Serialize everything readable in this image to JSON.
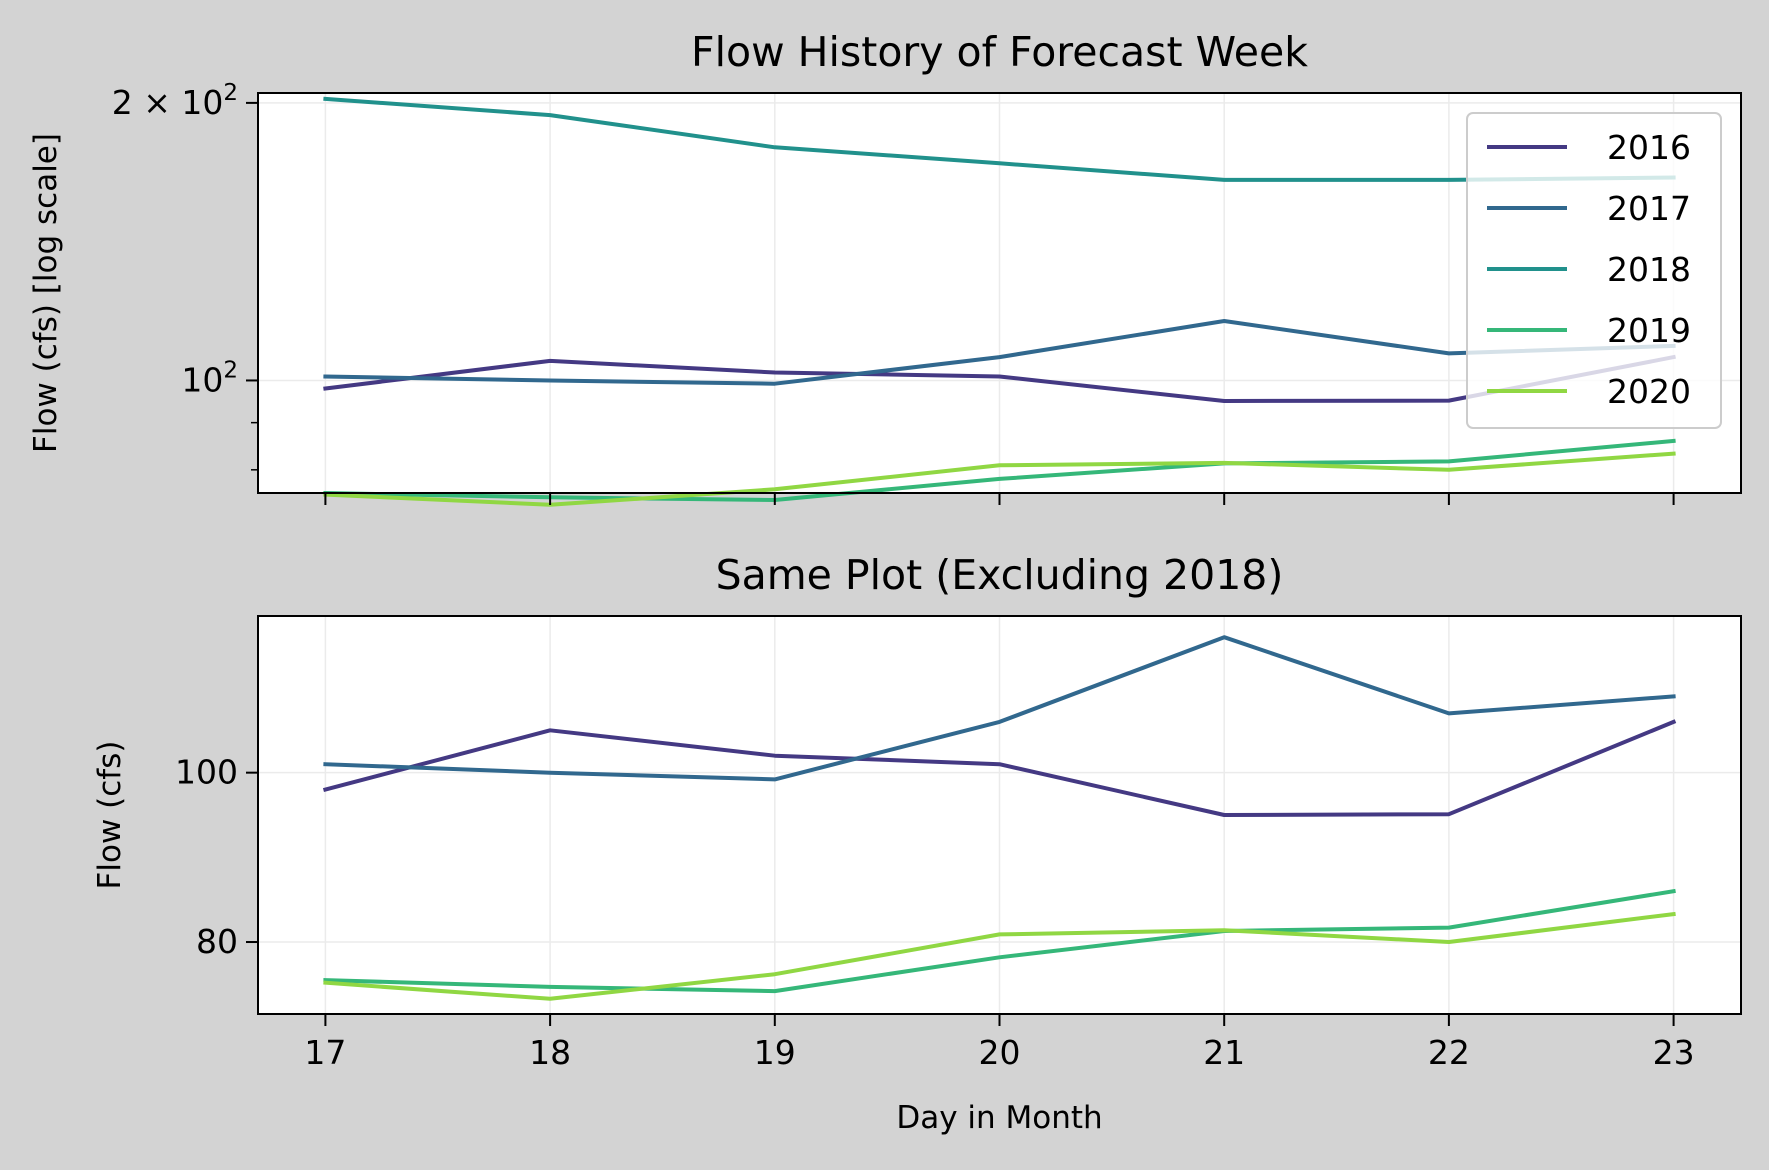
{
  "chart_data": [
    {
      "type": "line",
      "title": "Flow History of Forecast Week",
      "xlabel": "",
      "ylabel": "Flow (cfs) [log scale]",
      "yscale": "log",
      "ylim": [
        75.5,
        205
      ],
      "xlim": [
        16.7,
        23.3
      ],
      "x": [
        17,
        18,
        19,
        20,
        21,
        22,
        23
      ],
      "xticklabels": [],
      "yticks": [
        {
          "value": 100,
          "base": "10",
          "exp": "2"
        },
        {
          "value": 200,
          "mant": "2 × ",
          "base": "10",
          "exp": "2"
        }
      ],
      "minor_yticks": [
        80,
        90
      ],
      "grid": true,
      "legend": {
        "position": "top-right",
        "entries": [
          "2016",
          "2017",
          "2018",
          "2019",
          "2020"
        ]
      },
      "series": [
        {
          "name": "2016",
          "color": "#443983",
          "values": [
            98,
            105,
            102,
            101,
            95,
            95.1,
            106
          ]
        },
        {
          "name": "2017",
          "color": "#31688e",
          "values": [
            101,
            100,
            99.2,
            106,
            116,
            107,
            109
          ]
        },
        {
          "name": "2018",
          "color": "#21918c",
          "values": [
            202,
            194,
            179,
            172,
            165,
            165,
            166
          ]
        },
        {
          "name": "2019",
          "color": "#35b779",
          "values": [
            75.5,
            74.7,
            74.2,
            78.2,
            81.3,
            81.7,
            86
          ]
        },
        {
          "name": "2020",
          "color": "#90d743",
          "values": [
            75.2,
            73.3,
            76.2,
            80.9,
            81.4,
            80,
            83.3
          ]
        }
      ]
    },
    {
      "type": "line",
      "title": "Same Plot (Excluding 2018)",
      "xlabel": "Day in Month",
      "ylabel": "Flow (cfs)",
      "yscale": "linear",
      "ylim": [
        71.5,
        118.5
      ],
      "xlim": [
        16.7,
        23.3
      ],
      "x": [
        17,
        18,
        19,
        20,
        21,
        22,
        23
      ],
      "xticklabels": [
        "17",
        "18",
        "19",
        "20",
        "21",
        "22",
        "23"
      ],
      "yticks": [
        {
          "value": 80,
          "label": "80"
        },
        {
          "value": 100,
          "label": "100"
        }
      ],
      "grid": true,
      "series": [
        {
          "name": "2016",
          "color": "#443983",
          "values": [
            98,
            105,
            102,
            101,
            95,
            95.1,
            106
          ]
        },
        {
          "name": "2017",
          "color": "#31688e",
          "values": [
            101,
            100,
            99.2,
            106,
            116,
            107,
            109
          ]
        },
        {
          "name": "2019",
          "color": "#35b779",
          "values": [
            75.5,
            74.7,
            74.2,
            78.2,
            81.3,
            81.7,
            86
          ]
        },
        {
          "name": "2020",
          "color": "#90d743",
          "values": [
            75.2,
            73.3,
            76.2,
            80.9,
            81.4,
            80,
            83.3
          ]
        }
      ]
    }
  ]
}
